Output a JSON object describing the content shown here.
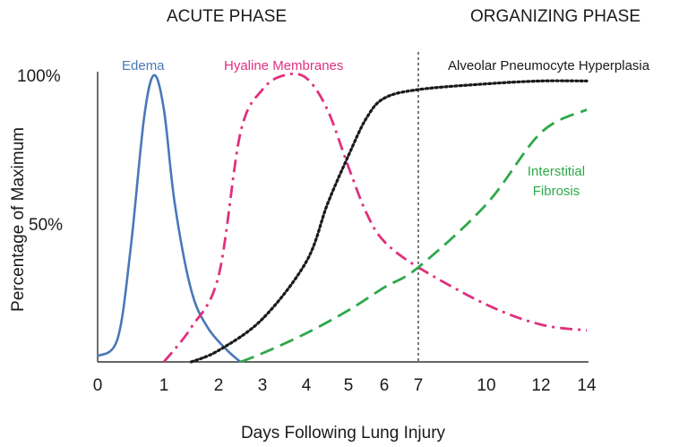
{
  "chart_data": {
    "type": "line",
    "phase_labels": [
      "ACUTE PHASE",
      "ORGANIZING PHASE"
    ],
    "xlabel": "Days Following Lung Injury",
    "ylabel": "Percentage of Maximum",
    "x_ticks": [
      "0",
      "1",
      "2",
      "3",
      "4",
      "5",
      "6",
      "7",
      "10",
      "12",
      "14"
    ],
    "y_ticks": [
      "100%",
      "50%"
    ],
    "phase_divider_day": "7",
    "series": [
      {
        "name": "Edema",
        "color": "#4a78b8",
        "style": "solid",
        "points": [
          [
            0,
            2
          ],
          [
            0.3,
            8
          ],
          [
            0.5,
            40
          ],
          [
            0.7,
            85
          ],
          [
            0.85,
            100
          ],
          [
            1.0,
            88
          ],
          [
            1.2,
            55
          ],
          [
            1.5,
            25
          ],
          [
            1.8,
            12
          ],
          [
            2.2,
            4
          ],
          [
            2.5,
            0
          ]
        ]
      },
      {
        "name": "Hyaline Membranes",
        "color": "#e0307e",
        "style": "dashdot",
        "points": [
          [
            1.0,
            0
          ],
          [
            1.5,
            12
          ],
          [
            2.0,
            30
          ],
          [
            2.5,
            80
          ],
          [
            3.0,
            95
          ],
          [
            3.5,
            100
          ],
          [
            4.0,
            99
          ],
          [
            4.5,
            88
          ],
          [
            5.0,
            68
          ],
          [
            5.5,
            52
          ],
          [
            6.0,
            42
          ],
          [
            7.0,
            33
          ],
          [
            10.0,
            20
          ],
          [
            12.0,
            13
          ],
          [
            14.0,
            11
          ]
        ]
      },
      {
        "name": "Alveolar Pneumocyte Hyperplasia",
        "color": "#1a1a1a",
        "style": "dotted",
        "points": [
          [
            1.5,
            0
          ],
          [
            2.0,
            4
          ],
          [
            3.0,
            15
          ],
          [
            4.0,
            35
          ],
          [
            4.5,
            55
          ],
          [
            5.0,
            72
          ],
          [
            5.5,
            85
          ],
          [
            6.0,
            92
          ],
          [
            7.0,
            95
          ],
          [
            10.0,
            97
          ],
          [
            12.0,
            98
          ],
          [
            14.0,
            98
          ]
        ]
      },
      {
        "name": "Interstitial Fibrosis",
        "color": "#2fa84a",
        "style": "dashed",
        "points": [
          [
            2.5,
            0
          ],
          [
            3.0,
            3
          ],
          [
            4.0,
            10
          ],
          [
            5.0,
            18
          ],
          [
            6.0,
            26
          ],
          [
            7.0,
            33
          ],
          [
            10.0,
            55
          ],
          [
            12.0,
            80
          ],
          [
            14.0,
            88
          ]
        ]
      }
    ]
  }
}
